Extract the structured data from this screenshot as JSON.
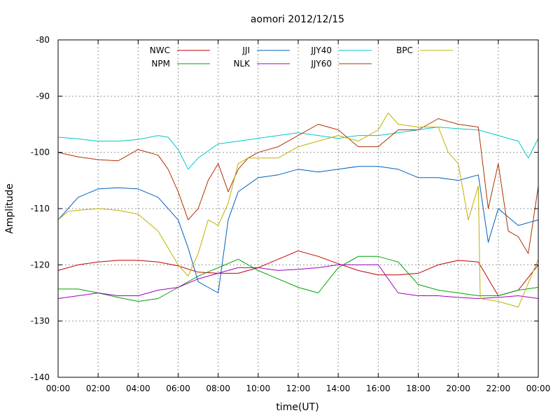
{
  "chart_data": {
    "type": "line",
    "title": "aomori 2012/12/15",
    "xlabel": "time(UT)",
    "ylabel": "Amplitude",
    "xlim": [
      0,
      24
    ],
    "ylim": [
      -140,
      -80
    ],
    "x_ticks": [
      "00:00",
      "02:00",
      "04:00",
      "06:00",
      "08:00",
      "10:00",
      "12:00",
      "14:00",
      "16:00",
      "18:00",
      "20:00",
      "22:00",
      "00:00"
    ],
    "y_ticks": [
      "-80",
      "-90",
      "-100",
      "-110",
      "-120",
      "-130",
      "-140"
    ],
    "grid": true,
    "legend_position": "top",
    "series": [
      {
        "name": "NWC",
        "color": "#c00000",
        "x": [
          0,
          1,
          2,
          3,
          4,
          5,
          6,
          7,
          8,
          9,
          10,
          11,
          12,
          13,
          14,
          15,
          16,
          17,
          18,
          19,
          20,
          21,
          22,
          23,
          24
        ],
        "y": [
          -121,
          -120,
          -119.5,
          -119.2,
          -119.2,
          -119.5,
          -120.2,
          -121.3,
          -121.5,
          -121.5,
          -120.5,
          -119,
          -117.5,
          -118.5,
          -119.8,
          -121,
          -121.8,
          -121.8,
          -121.5,
          -120,
          -119.2,
          -119.5,
          -125.5,
          -124.5,
          -120
        ]
      },
      {
        "name": "NPM",
        "color": "#00a000",
        "x": [
          0,
          1,
          2,
          3,
          4,
          5,
          6,
          7,
          8,
          9,
          10,
          11,
          12,
          13,
          14,
          15,
          16,
          17,
          18,
          19,
          20,
          21,
          22,
          23,
          24
        ],
        "y": [
          -124.3,
          -124.3,
          -125,
          -125.8,
          -126.5,
          -126,
          -124,
          -122,
          -120.5,
          -119,
          -121,
          -122.5,
          -124,
          -125,
          -120.5,
          -118.5,
          -118.5,
          -119.5,
          -123.5,
          -124.5,
          -125,
          -125.5,
          -125.5,
          -124.5,
          -124
        ]
      },
      {
        "name": "JJI",
        "color": "#0060c0",
        "x": [
          0,
          0.5,
          1,
          2,
          3,
          4,
          5,
          6,
          6.5,
          7,
          7.5,
          8,
          8.5,
          9,
          10,
          11,
          12,
          13,
          14,
          15,
          16,
          17,
          18,
          19,
          20,
          21,
          21.5,
          22,
          23,
          24
        ],
        "y": [
          -112,
          -110,
          -108,
          -106.5,
          -106.3,
          -106.5,
          -108,
          -112,
          -117,
          -123,
          -124,
          -125,
          -112,
          -107,
          -104.5,
          -104,
          -103,
          -103.5,
          -103,
          -102.5,
          -102.5,
          -103,
          -104.5,
          -104.5,
          -105,
          -104,
          -116,
          -110,
          -113,
          -112
        ]
      },
      {
        "name": "NLK",
        "color": "#a000c0",
        "x": [
          0,
          1,
          2,
          3,
          4,
          5,
          6,
          7,
          8,
          9,
          10,
          11,
          12,
          13,
          14,
          15,
          16,
          17,
          18,
          19,
          20,
          21,
          22,
          23,
          24
        ],
        "y": [
          -126,
          -125.5,
          -125,
          -125.5,
          -125.5,
          -124.5,
          -124,
          -122.5,
          -121.5,
          -120.5,
          -120.5,
          -121,
          -120.8,
          -120.5,
          -120,
          -120,
          -120,
          -125,
          -125.5,
          -125.5,
          -125.8,
          -126,
          -125.8,
          -125.5,
          -126
        ]
      },
      {
        "name": "JJY40",
        "color": "#00c8c8",
        "x": [
          0,
          1,
          2,
          3,
          4,
          5,
          5.5,
          6,
          6.5,
          7,
          8,
          9,
          10,
          11,
          12,
          13,
          14,
          15,
          16,
          17,
          18,
          19,
          20,
          21,
          21.5,
          22,
          23,
          23.5,
          24
        ],
        "y": [
          -97.3,
          -97.6,
          -98,
          -98,
          -97.7,
          -97,
          -97.3,
          -99.5,
          -103,
          -101,
          -98.5,
          -98,
          -97.5,
          -97,
          -96.5,
          -97,
          -97.5,
          -97,
          -97,
          -96.5,
          -96,
          -95.5,
          -95.8,
          -96,
          -96.5,
          -97,
          -98,
          -101,
          -97.5
        ]
      },
      {
        "name": "JJY60",
        "color": "#b03000",
        "x": [
          0,
          1,
          2,
          3,
          4,
          5,
          5.5,
          6,
          6.5,
          7,
          7.5,
          8,
          8.5,
          9,
          9.5,
          10,
          11,
          12,
          13,
          14,
          15,
          16,
          17,
          18,
          19,
          20,
          21,
          21.5,
          22,
          22.5,
          23,
          23.5,
          24
        ],
        "y": [
          -100,
          -100.8,
          -101.3,
          -101.5,
          -99.5,
          -100.5,
          -103,
          -107,
          -112,
          -110,
          -105,
          -102,
          -107,
          -103,
          -101,
          -100,
          -99,
          -97,
          -95,
          -96,
          -99,
          -99,
          -96,
          -96,
          -94,
          -95,
          -95.5,
          -110,
          -102,
          -114,
          -115,
          -118,
          -106
        ]
      },
      {
        "name": "BPC",
        "color": "#c0b000",
        "x": [
          0,
          0.5,
          1,
          2,
          3,
          4,
          5,
          5.5,
          6,
          6.5,
          7,
          7.5,
          8,
          8.5,
          9,
          9.5,
          10,
          11,
          12,
          13,
          14,
          15,
          16,
          16.5,
          17,
          18,
          19,
          19.5,
          20,
          20.5,
          21,
          21.1,
          22,
          23,
          24
        ],
        "y": [
          -112,
          -110.5,
          -110.3,
          -110,
          -110.3,
          -111,
          -114,
          -117,
          -120,
          -122,
          -118,
          -112,
          -113,
          -109,
          -102,
          -101,
          -101,
          -101,
          -99,
          -98,
          -97,
          -98,
          -96,
          -93,
          -95,
          -95.5,
          -95.5,
          -100,
          -102,
          -112,
          -106,
          -126,
          -126.5,
          -127.5,
          -119
        ]
      }
    ]
  }
}
